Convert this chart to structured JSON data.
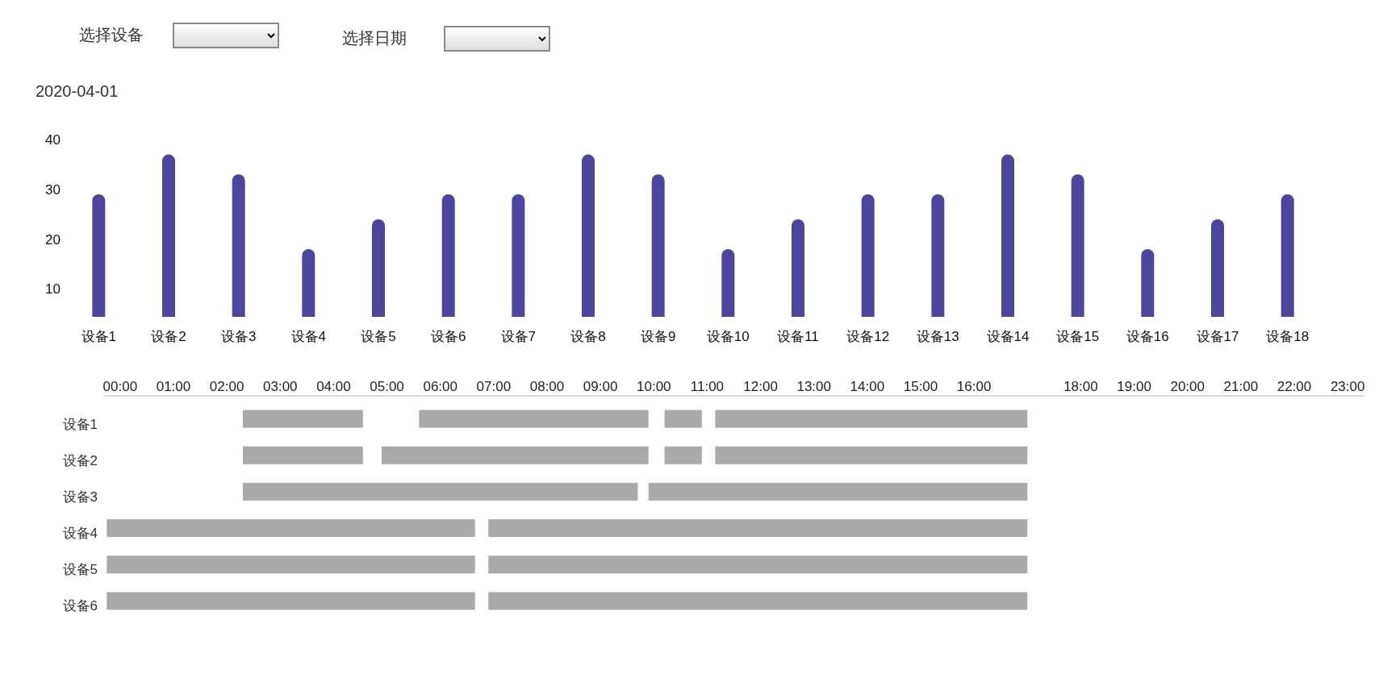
{
  "chart_data": [
    {
      "type": "bar",
      "title": "2020-04-01",
      "annotations": [
        "选择设备",
        "选择日期"
      ],
      "categories": [
        "设备1",
        "设备2",
        "设备3",
        "设备4",
        "设备5",
        "设备6",
        "设备7",
        "设备8",
        "设备9",
        "设备10",
        "设备11",
        "设备12",
        "设备13",
        "设备14",
        "设备15",
        "设备16",
        "设备17",
        "设备18"
      ],
      "series": [
        {
          "color": "#4b459e",
          "values": [
            29,
            37,
            33,
            18,
            24,
            29,
            29,
            37,
            33,
            18,
            24,
            29,
            29,
            37,
            33,
            18,
            24,
            29
          ]
        }
      ],
      "ylim": [
        4.4,
        40
      ],
      "yticks": [
        10,
        20,
        30,
        40
      ],
      "grid": false
    },
    {
      "type": "bar",
      "orientation": "horizontal",
      "categories": [
        "设备1",
        "设备2",
        "设备3",
        "设备4",
        "设备5",
        "设备6"
      ],
      "series": [
        {
          "color": "#aaaaaa",
          "base": [
            2.3,
            2.3,
            2.3,
            -0.25,
            -0.25,
            -0.25
          ],
          "values": [
            2.25,
            2.25,
            7.4,
            6.9,
            6.9,
            6.9
          ]
        },
        {
          "color": "#aaaaaa",
          "base": [
            5.6,
            4.9,
            9.9,
            6.9,
            6.9,
            6.9
          ],
          "values": [
            4.3,
            5.0,
            7.1,
            10.1,
            10.1,
            10.1
          ]
        },
        {
          "color": "#aaaaaa",
          "base": [
            10.2,
            10.2,
            null,
            null,
            null,
            null
          ],
          "values": [
            0.7,
            0.7,
            null,
            null,
            null,
            null
          ]
        },
        {
          "color": "#aaaaaa",
          "base": [
            11.15,
            11.15,
            null,
            null,
            null,
            null
          ],
          "values": [
            5.85,
            5.85,
            null,
            null,
            null,
            null
          ]
        }
      ],
      "xlim": [
        -0.3,
        23.3
      ],
      "xticks": [
        {
          "value": 0,
          "label": "00:00"
        },
        {
          "value": 1,
          "label": "01:00"
        },
        {
          "value": 2,
          "label": "02:00"
        },
        {
          "value": 3,
          "label": "03:00"
        },
        {
          "value": 4,
          "label": "04:00"
        },
        {
          "value": 5,
          "label": "05:00"
        },
        {
          "value": 6,
          "label": "06:00"
        },
        {
          "value": 7,
          "label": "07:00"
        },
        {
          "value": 8,
          "label": "08:00"
        },
        {
          "value": 9,
          "label": "09:00"
        },
        {
          "value": 10,
          "label": "10:00"
        },
        {
          "value": 11,
          "label": "11:00"
        },
        {
          "value": 12,
          "label": "12:00"
        },
        {
          "value": 13,
          "label": "13:00"
        },
        {
          "value": 14,
          "label": "14:00"
        },
        {
          "value": 15,
          "label": "15:00"
        },
        {
          "value": 16,
          "label": "16:00"
        },
        {
          "value": 18,
          "label": "18:00"
        },
        {
          "value": 19,
          "label": "19:00"
        },
        {
          "value": 20,
          "label": "20:00"
        },
        {
          "value": 21,
          "label": "21:00"
        },
        {
          "value": 22,
          "label": "22:00"
        },
        {
          "value": 23,
          "label": "23:00"
        }
      ],
      "grid": false
    }
  ]
}
